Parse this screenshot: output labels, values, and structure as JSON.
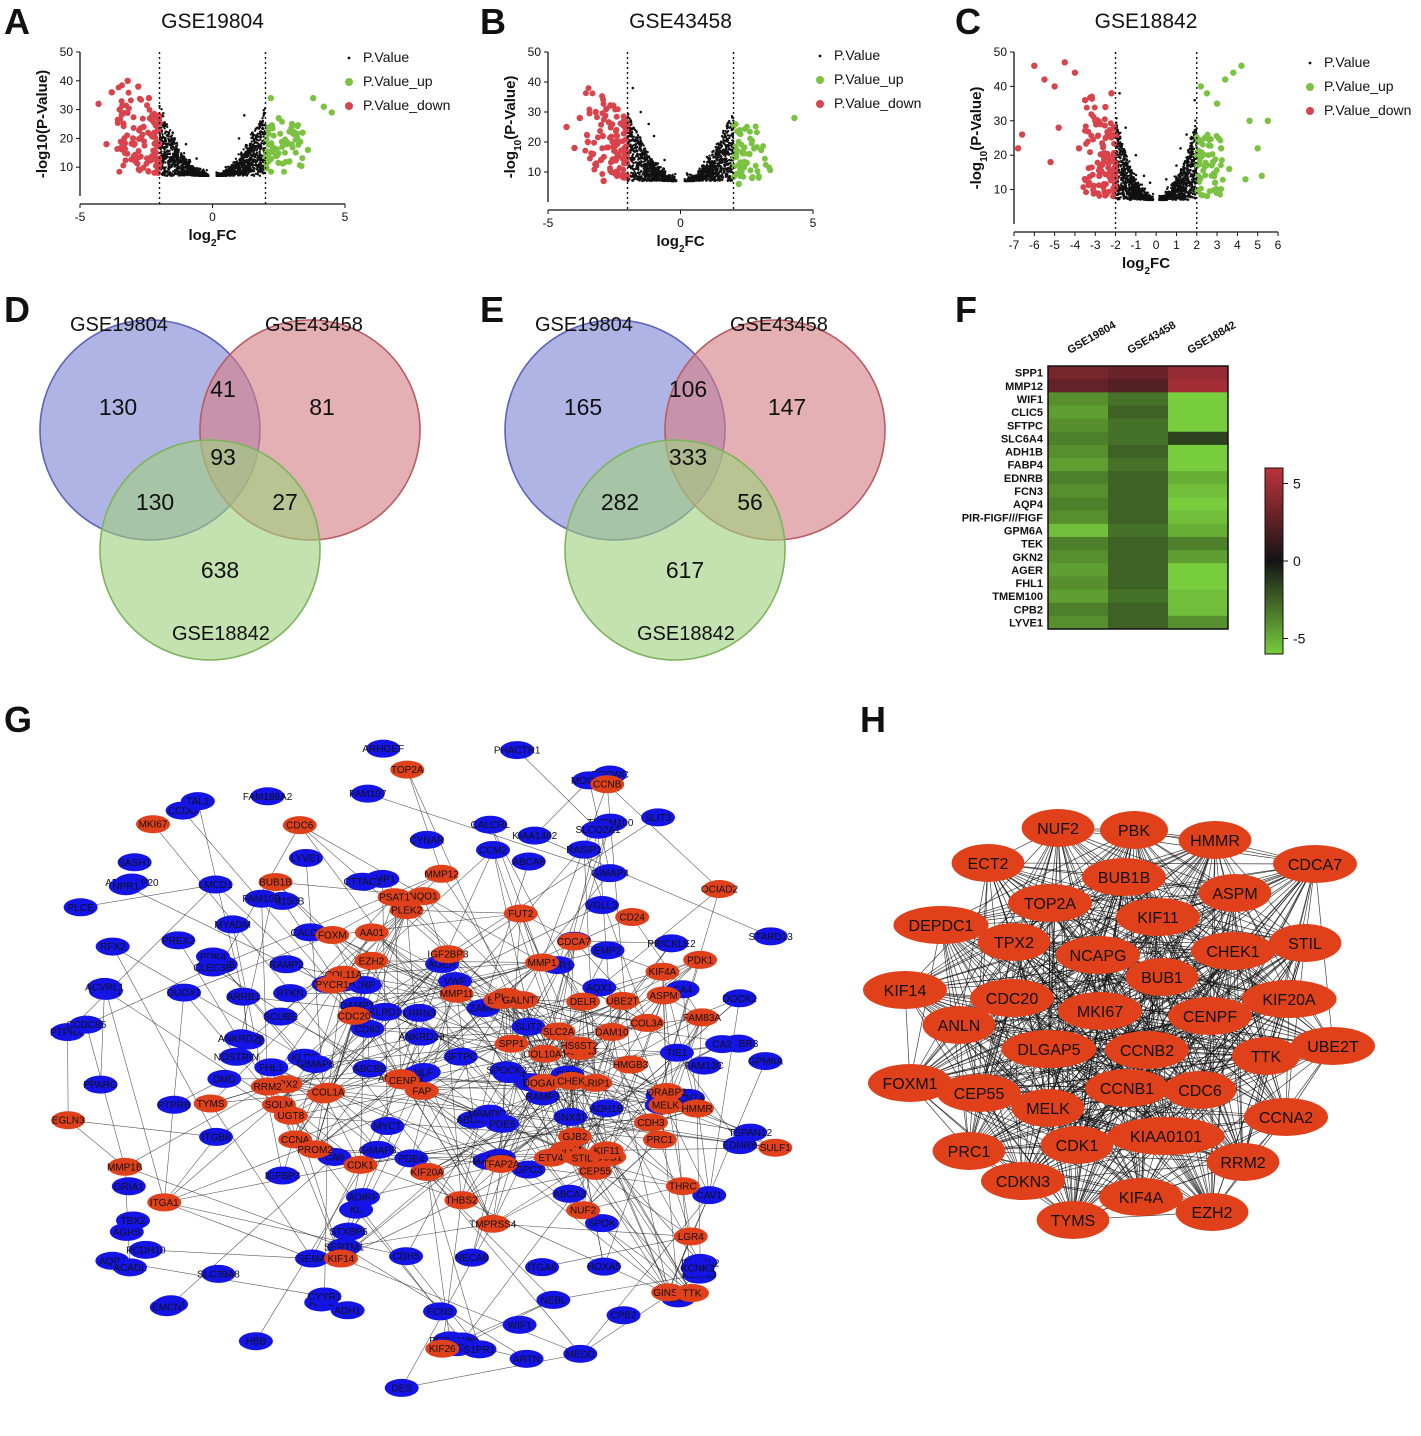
{
  "panels": {
    "A": {
      "label": "A",
      "title": "GSE19804"
    },
    "B": {
      "label": "B",
      "title": "GSE43458"
    },
    "C": {
      "label": "C",
      "title": "GSE18842"
    },
    "D": {
      "label": "D"
    },
    "E": {
      "label": "E"
    },
    "F": {
      "label": "F"
    },
    "G": {
      "label": "G"
    },
    "H": {
      "label": "H"
    }
  },
  "volcano_legend": [
    "P.Value",
    "P.Value_up",
    "P.Value_down"
  ],
  "colors": {
    "ns": "#111111",
    "up": "#7cc242",
    "down": "#d9434b",
    "venn_blue": "#7f86d4",
    "venn_red": "#d47f86",
    "venn_green": "#9fd07f",
    "net_blue": "#1414e6",
    "net_red": "#e0401a"
  },
  "chart_data": [
    {
      "type": "scatter",
      "panel": "A",
      "title": "GSE19804",
      "xlabel": "log2FC",
      "ylabel": "-log10(P-Value)",
      "xlim": [
        -5,
        5
      ],
      "ylim": [
        0,
        50
      ],
      "xticks": [
        -5,
        0,
        5
      ],
      "yticks": [
        10,
        20,
        30,
        40,
        50
      ],
      "thresholds": [
        -2,
        2
      ],
      "series": [
        {
          "name": "P.Value",
          "points": [
            [
              -1.8,
              25
            ],
            [
              -1.5,
              22
            ],
            [
              -1.0,
              18
            ],
            [
              -0.6,
              13
            ],
            [
              1.0,
              20
            ],
            [
              1.5,
              22
            ],
            [
              1.9,
              26
            ],
            [
              0.5,
              10
            ],
            [
              -0.3,
              8
            ],
            [
              1.2,
              28
            ]
          ]
        },
        {
          "name": "P.Value_up",
          "points": [
            [
              2.2,
              34
            ],
            [
              2.5,
              27
            ],
            [
              3.0,
              25
            ],
            [
              3.4,
              22
            ],
            [
              3.8,
              34
            ],
            [
              4.2,
              31
            ],
            [
              4.5,
              29
            ],
            [
              2.8,
              18
            ],
            [
              3.2,
              20
            ],
            [
              3.6,
              16
            ],
            [
              2.4,
              14
            ],
            [
              2.9,
              12
            ]
          ]
        },
        {
          "name": "P.Value_down",
          "points": [
            [
              -4.3,
              32
            ],
            [
              -3.8,
              36
            ],
            [
              -3.2,
              40
            ],
            [
              -2.8,
              38
            ],
            [
              -2.4,
              34
            ],
            [
              -3.5,
              30
            ],
            [
              -4.0,
              18
            ],
            [
              -3.0,
              20
            ],
            [
              -2.6,
              24
            ],
            [
              -3.3,
              15
            ],
            [
              -2.2,
              28
            ],
            [
              -2.9,
              12
            ]
          ]
        }
      ]
    },
    {
      "type": "scatter",
      "panel": "B",
      "title": "GSE43458",
      "xlabel": "log2FC",
      "ylabel": "-log10(P-Value)",
      "xlim": [
        -5,
        5
      ],
      "ylim": [
        0,
        50
      ],
      "xticks": [
        -5,
        0,
        5
      ],
      "yticks": [
        10,
        20,
        30,
        40,
        50
      ],
      "thresholds": [
        -2,
        2
      ],
      "series": [
        {
          "name": "P.Value",
          "points": [
            [
              -1.8,
              38
            ],
            [
              -1.5,
              30
            ],
            [
              -1.0,
              22
            ],
            [
              -0.6,
              14
            ],
            [
              1.0,
              15
            ],
            [
              1.5,
              17
            ],
            [
              1.9,
              12
            ],
            [
              0.5,
              8
            ],
            [
              -0.3,
              9
            ],
            [
              -1.2,
              26
            ]
          ]
        },
        {
          "name": "P.Value_up",
          "points": [
            [
              2.1,
              15
            ],
            [
              2.3,
              10
            ],
            [
              2.5,
              13
            ],
            [
              2.7,
              8
            ],
            [
              4.3,
              28
            ],
            [
              2.2,
              6
            ],
            [
              2.6,
              16
            ]
          ]
        },
        {
          "name": "P.Value_down",
          "points": [
            [
              -4.3,
              25
            ],
            [
              -3.8,
              28
            ],
            [
              -3.2,
              30
            ],
            [
              -2.8,
              31
            ],
            [
              -2.4,
              22
            ],
            [
              -3.5,
              20
            ],
            [
              -4.0,
              18
            ],
            [
              -3.0,
              14
            ],
            [
              -2.6,
              10
            ],
            [
              -3.3,
              16
            ],
            [
              -2.2,
              26
            ],
            [
              -2.9,
              7
            ]
          ]
        }
      ]
    },
    {
      "type": "scatter",
      "panel": "C",
      "title": "GSE18842",
      "xlabel": "log2FC",
      "ylabel": "-log10(P-Value)",
      "xlim": [
        -7,
        6
      ],
      "ylim": [
        0,
        50
      ],
      "xticks": [
        -7,
        -6,
        -5,
        -4,
        -3,
        -2,
        -1,
        0,
        1,
        2,
        3,
        4,
        5,
        6
      ],
      "yticks": [
        10,
        20,
        30,
        40,
        50
      ],
      "thresholds": [
        -2,
        2
      ],
      "series": [
        {
          "name": "P.Value",
          "points": [
            [
              -1.8,
              38
            ],
            [
              -1.5,
              28
            ],
            [
              -1.0,
              20
            ],
            [
              -0.6,
              14
            ],
            [
              1.0,
              17
            ],
            [
              1.5,
              26
            ],
            [
              1.9,
              36
            ],
            [
              0.5,
              13
            ],
            [
              -0.3,
              12
            ],
            [
              1.2,
              22
            ]
          ]
        },
        {
          "name": "P.Value_up",
          "points": [
            [
              2.2,
              40
            ],
            [
              2.5,
              38
            ],
            [
              3.0,
              35
            ],
            [
              3.4,
              42
            ],
            [
              3.8,
              44
            ],
            [
              4.2,
              46
            ],
            [
              4.6,
              30
            ],
            [
              5.0,
              22
            ],
            [
              5.5,
              30
            ],
            [
              2.8,
              18
            ],
            [
              3.2,
              22
            ],
            [
              3.6,
              16
            ],
            [
              4.4,
              13
            ],
            [
              5.2,
              14
            ],
            [
              2.4,
              25
            ],
            [
              2.9,
              12
            ]
          ]
        },
        {
          "name": "P.Value_down",
          "points": [
            [
              -6.6,
              26
            ],
            [
              -6.0,
              46
            ],
            [
              -5.5,
              42
            ],
            [
              -5.0,
              40
            ],
            [
              -4.5,
              47
            ],
            [
              -4.0,
              44
            ],
            [
              -3.5,
              36
            ],
            [
              -3.0,
              30
            ],
            [
              -2.5,
              34
            ],
            [
              -2.2,
              38
            ],
            [
              -3.8,
              22
            ],
            [
              -5.2,
              18
            ],
            [
              -6.8,
              22
            ],
            [
              -4.8,
              28
            ],
            [
              -2.8,
              14
            ],
            [
              -3.3,
              12
            ]
          ]
        }
      ]
    },
    {
      "type": "venn",
      "panel": "D",
      "sets": [
        "GSE19804",
        "GSE43458",
        "GSE18842"
      ],
      "regions": {
        "A_only": "130",
        "B_only": "81",
        "C_only": "638",
        "AB": "41",
        "AC": "130",
        "BC": "27",
        "ABC": "93"
      }
    },
    {
      "type": "venn",
      "panel": "E",
      "sets": [
        "GSE19804",
        "GSE43458",
        "GSE18842"
      ],
      "regions": {
        "A_only": "165",
        "B_only": "147",
        "C_only": "617",
        "AB": "106",
        "AC": "282",
        "BC": "56",
        "ABC": "333"
      }
    },
    {
      "type": "heatmap",
      "panel": "F",
      "columns": [
        "GSE19804",
        "GSE43458",
        "GSE18842"
      ],
      "rows": [
        "SPP1",
        "MMP12",
        "WIF1",
        "CLIC5",
        "SFTPC",
        "SLC6A4",
        "ADH1B",
        "FABP4",
        "EDNRB",
        "FCN3",
        "AQP4",
        "PIR-FIGF///FIGF",
        "GPM6A",
        "TEK",
        "GKN2",
        "AGER",
        "FHL1",
        "TMEM100",
        "CPB2",
        "LYVE1"
      ],
      "values": [
        [
          3.5,
          3.0,
          4.5
        ],
        [
          2.8,
          2.2,
          5.0
        ],
        [
          -4.0,
          -3.0,
          -6.0
        ],
        [
          -4.5,
          -2.5,
          -7.0
        ],
        [
          -4.0,
          -3.0,
          -6.5
        ],
        [
          -3.5,
          -3.0,
          -1.5
        ],
        [
          -4.0,
          -2.5,
          -6.5
        ],
        [
          -4.5,
          -3.0,
          -7.0
        ],
        [
          -3.5,
          -2.5,
          -5.0
        ],
        [
          -4.0,
          -2.5,
          -5.5
        ],
        [
          -3.5,
          -2.5,
          -6.0
        ],
        [
          -4.0,
          -2.5,
          -5.5
        ],
        [
          -5.5,
          -3.0,
          -5.0
        ],
        [
          -3.5,
          -2.5,
          -3.5
        ],
        [
          -4.0,
          -2.5,
          -4.5
        ],
        [
          -4.5,
          -2.5,
          -6.0
        ],
        [
          -4.0,
          -2.5,
          -6.0
        ],
        [
          -4.5,
          -3.0,
          -5.5
        ],
        [
          -3.5,
          -2.5,
          -5.5
        ],
        [
          -4.0,
          -2.5,
          -4.0
        ]
      ],
      "colorbar_ticks": [
        5,
        0,
        -5
      ],
      "colorbar_range": [
        -6,
        6
      ]
    }
  ],
  "network_G": {
    "red_nodes": [
      "FAM83A",
      "PLEK2",
      "ANKRD22",
      "LGR4",
      "NQO1",
      "TMPRSS4",
      "GJB2",
      "DAM10",
      "UOGAP5",
      "BUB1B",
      "CDKN3",
      "CDC20",
      "BUB1",
      "KIF20A",
      "FUT2",
      "KIF14",
      "BRIP1",
      "MMP11",
      "SULF1",
      "FAP",
      "HS6ST2",
      "MMP1",
      "SOLM",
      "GREM",
      "THRC",
      "COL3A",
      "SPP1",
      "CD24",
      "FOXM",
      "ECT2",
      "CDC6",
      "KIF4A",
      "KIF11",
      "GINS1",
      "PRC1",
      "EZH2",
      "MELK",
      "PBK",
      "TPX2",
      "CCNB",
      "UBE2T",
      "RRM2",
      "ANLN",
      "CCNA",
      "CHEK",
      "TOP2A",
      "CDK1",
      "STIL",
      "AA01",
      "CEP55",
      "CENP",
      "HMMR",
      "ETV4",
      "DELR",
      "OCIAD2",
      "PROM2",
      "COL11A",
      "MMP12",
      "COL1A",
      "PLAU",
      "MKI67",
      "NUF2",
      "CDCA7",
      "TTK",
      "IGF2BP3",
      "CDH3",
      "TYMS",
      "TFAP2A",
      "THBS2",
      "KIF26",
      "HMGB3",
      "PSAT1",
      "PDK1",
      "ORABP2",
      "SLC2A",
      "ITGA1",
      "PYCR1",
      "COL10A1",
      "EGLN3",
      "GALNT7",
      "UGT8",
      "MMP1B",
      "ASPM"
    ],
    "blue_nodes": [
      "STX11",
      "VGLL3",
      "FAM189A2",
      "ANKRD29",
      "SERTM1",
      "PLCE",
      "STXBP6",
      "RBMS3",
      "PRICKLE2",
      "KLRD1",
      "GPC3",
      "LMP1",
      "AGRS",
      "CTTAC1",
      "TMEM100",
      "AQX1",
      "WIF1",
      "CRP",
      "PREX2",
      "PALMD",
      "KLRF",
      "AGER",
      "SCN7A",
      "FCN3",
      "CALCRL",
      "RECWC",
      "TSPAN12",
      "CA4",
      "RTKN",
      "PTPRM",
      "CYNAR",
      "MAGA2",
      "EDNRB",
      "CA8",
      "CLIC5",
      "SPOK",
      "CAV1",
      "TEK",
      "FABP4",
      "ADH1B",
      "CDH5",
      "ARHGEF",
      "DES",
      "SLC39A8",
      "LMCD1",
      "CCDO",
      "TNS1",
      "SAA",
      "PPARG",
      "PDK4",
      "AFF3",
      "ARTN",
      "DPYSL2",
      "KIAA1462",
      "TACC1",
      "PHACTR1",
      "MEDD",
      "ABLIM1",
      "TAL1",
      "FAM150B",
      "PDE4",
      "GPM6A",
      "DOCK2",
      "VIPR1",
      "HOXA5",
      "ANKRD29",
      "SLCO2A1",
      "KCNK3",
      "ASPA",
      "MOOD1",
      "NEBL",
      "TCF21",
      "FAM13C",
      "FRRF1",
      "HPP",
      "FAM10B",
      "SNX31",
      "RASIP1",
      "RFX2",
      "FHL1",
      "MYCT",
      "SPOCK2",
      "CLEC3B",
      "GRIA1",
      "OGN",
      "PECAM1",
      "CYYR1",
      "CCDC85",
      "LRRC32",
      "ADIRF",
      "MAMDC2",
      "CCM2",
      "ABCB8",
      "AGR2",
      "FAM107",
      "ITGA8",
      "HLF",
      "EMP2",
      "ARHGAP20",
      "NPR1",
      "AQP4",
      "DMD",
      "ADH1",
      "SCUBE",
      "DAMP1",
      "IGFBP3",
      "SEMA",
      "ZAMA",
      "ROBO",
      "TIE1",
      "NOSTRIN",
      "EMCN",
      "LYVE1",
      "CPB2",
      "SFTPC",
      "TBX2",
      "GIMAP4",
      "GIMAP6",
      "GIMAP8",
      "ABCA8",
      "PCDH10",
      "CD93",
      "VWF",
      "PTPRB",
      "STARD13",
      "SASH1",
      "PDE5",
      "SLIT2",
      "SLIT3",
      "ARRB1",
      "TGFBR3",
      "ACVRL1",
      "CALCRL",
      "KL",
      "NECAB",
      "DUOX1",
      "NPNT",
      "RAMP2",
      "RAMP3",
      "LRRN3",
      "MYADM",
      "S1PR1",
      "HBB",
      "ABCA3",
      "ACADL",
      "CA2",
      "ITGB8"
    ],
    "edge_count": 620
  },
  "network_H": {
    "nodes": [
      "NUF2",
      "PBK",
      "HMMR",
      "ECT2",
      "BUB1B",
      "CDCA7",
      "ASPM",
      "TOP2A",
      "KIF11",
      "DEPDC1",
      "STIL",
      "TPX2",
      "NCAPG",
      "CHEK1",
      "BUB1",
      "KIF14",
      "CDC20",
      "KIF20A",
      "MKI67",
      "CENPF",
      "ANLN",
      "UBE2T",
      "DLGAP5",
      "CCNB2",
      "TTK",
      "FOXM1",
      "CEP55",
      "CCNB1",
      "CDC6",
      "MELK",
      "CCNA2",
      "PRC1",
      "CDK1",
      "KIAA0101",
      "RRM2",
      "CDKN3",
      "KIF4A",
      "EZH2",
      "TYMS"
    ]
  }
}
